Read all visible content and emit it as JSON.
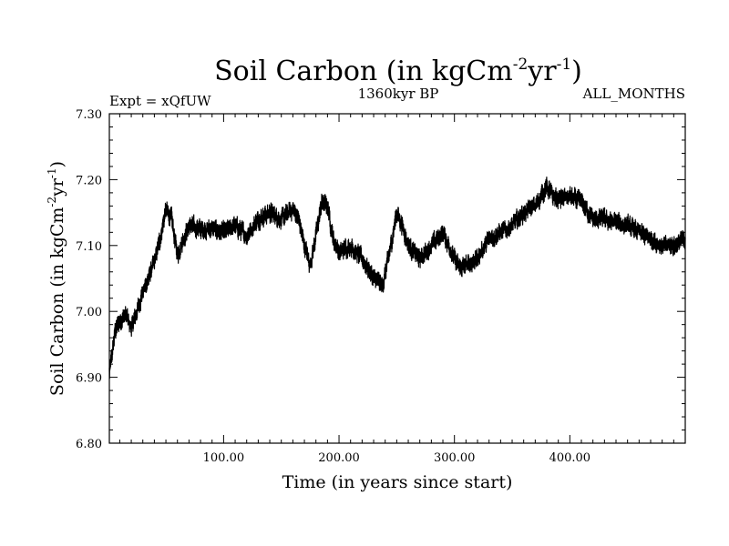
{
  "chart_data": {
    "type": "line",
    "title_main": "Soil Carbon (in kgCm",
    "title_sup1": "-2",
    "title_mid": "yr",
    "title_sup2": "-1",
    "title_end": ")",
    "experiment": "Expt = xQfUW",
    "period": "1360kyr BP",
    "season": "ALL_MONTHS",
    "xlabel": "Time (in years since start)",
    "ylabel_main": "Soil Carbon (in kgCm",
    "ylabel_sup1": "-2",
    "ylabel_mid": "yr",
    "ylabel_sup2": "-1",
    "ylabel_end": ")",
    "xlim": [
      1,
      500
    ],
    "ylim": [
      6.8,
      7.3
    ],
    "x_ticks": [
      100,
      200,
      300,
      400
    ],
    "x_tick_labels": [
      "100.00",
      "200.00",
      "300.00",
      "400.00"
    ],
    "y_ticks": [
      6.8,
      6.9,
      7.0,
      7.1,
      7.2,
      7.3
    ],
    "y_tick_labels": [
      "6.80",
      "6.90",
      "7.00",
      "7.10",
      "7.20",
      "7.30"
    ],
    "series": [
      {
        "name": "Soil Carbon",
        "color": "#000000",
        "noise_amplitude": 0.012,
        "x": [
          1,
          3,
          6,
          10,
          15,
          20,
          25,
          30,
          35,
          40,
          45,
          50,
          55,
          60,
          65,
          70,
          80,
          90,
          100,
          110,
          120,
          130,
          140,
          150,
          160,
          165,
          170,
          175,
          180,
          185,
          190,
          195,
          200,
          210,
          220,
          230,
          238,
          245,
          250,
          255,
          260,
          270,
          280,
          290,
          300,
          305,
          310,
          320,
          330,
          340,
          350,
          360,
          370,
          380,
          385,
          390,
          400,
          410,
          420,
          430,
          440,
          450,
          460,
          470,
          480,
          490,
          500
        ],
        "y": [
          6.905,
          6.93,
          6.97,
          6.985,
          6.995,
          6.975,
          7.0,
          7.03,
          7.05,
          7.075,
          7.11,
          7.155,
          7.14,
          7.085,
          7.11,
          7.13,
          7.125,
          7.125,
          7.12,
          7.13,
          7.115,
          7.14,
          7.15,
          7.14,
          7.155,
          7.14,
          7.1,
          7.07,
          7.115,
          7.165,
          7.16,
          7.11,
          7.09,
          7.1,
          7.08,
          7.05,
          7.04,
          7.1,
          7.15,
          7.13,
          7.1,
          7.08,
          7.1,
          7.12,
          7.08,
          7.065,
          7.07,
          7.08,
          7.11,
          7.12,
          7.13,
          7.15,
          7.16,
          7.19,
          7.175,
          7.17,
          7.175,
          7.165,
          7.14,
          7.14,
          7.135,
          7.13,
          7.12,
          7.11,
          7.1,
          7.1,
          7.11
        ]
      }
    ]
  }
}
